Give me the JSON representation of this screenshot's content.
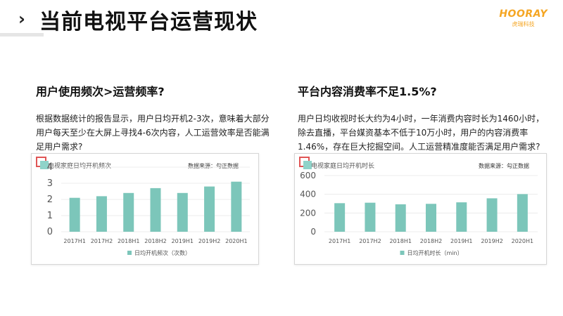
{
  "header": {
    "title": "当前电视平台运营现状",
    "logo_text": "HOORAY",
    "logo_subtext": "虎瑞科技"
  },
  "left": {
    "heading": "用户使用频次>运营频率?",
    "body": "根据数据统计的报告显示，用户日均开机2-3次，意味着大部分用户每天至少在大屏上寻找4-6次内容，人工运营效率是否能满足用户需求?"
  },
  "right": {
    "heading": "平台内容消费率不足1.5%?",
    "body": "用户日均收视时长大约为4小时，一年消费内容时长为1460小时，除去直播，平台媒资基本不低于10万小时，用户的内容消费率1.46%，存在巨大挖掘空间。人工运营精准度能否满足用户需求?"
  },
  "chart_data": [
    {
      "type": "bar",
      "title": "电视家庭日均开机频次",
      "source": "数据来源：勾正数据",
      "categories": [
        "2017H1",
        "2017H2",
        "2018H1",
        "2018H2",
        "2019H1",
        "2019H2",
        "2020H1"
      ],
      "series": [
        {
          "name": "日均开机频次（次数）",
          "values": [
            2.1,
            2.2,
            2.4,
            2.7,
            2.4,
            2.8,
            3.1
          ]
        }
      ],
      "yticks": [
        0,
        1,
        2,
        3,
        4
      ],
      "ylim": [
        0,
        4
      ],
      "colors": {
        "bar": "#7cc6ba"
      }
    },
    {
      "type": "bar",
      "title": "电视家庭日均开机时长",
      "source": "数据来源：勾正数据",
      "categories": [
        "2017H1",
        "2017H2",
        "2018H1",
        "2018H2",
        "2019H1",
        "2019H2",
        "2020H1"
      ],
      "series": [
        {
          "name": "日均开机时长（min）",
          "values": [
            305,
            310,
            293,
            298,
            314,
            357,
            402
          ]
        }
      ],
      "yticks": [
        0,
        200,
        400,
        600
      ],
      "ylim": [
        0,
        600
      ],
      "colors": {
        "bar": "#7cc6ba"
      }
    }
  ]
}
